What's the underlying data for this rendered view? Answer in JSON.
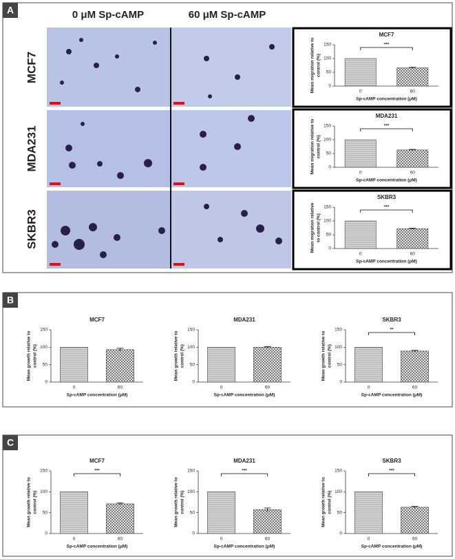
{
  "figure": {
    "panels": [
      "A",
      "B",
      "C"
    ],
    "columns": [
      "0 μM Sp-cAMP",
      "60 μM Sp-cAMP"
    ],
    "rows": [
      "MCF7",
      "MDA231",
      "SKBR3"
    ]
  },
  "chart_data": [
    {
      "type": "bar",
      "title": "MCF7",
      "categories": [
        "0",
        "60"
      ],
      "values": [
        100,
        66
      ],
      "errors": [
        0,
        2
      ],
      "ylabel": [
        "Mean migration relative to",
        "control (%)"
      ],
      "xlabel": "Sp-cAMP concentration (μM)",
      "ylim": [
        0,
        150
      ],
      "yticks": [
        0,
        50,
        100,
        150
      ],
      "annotation": "***"
    },
    {
      "type": "bar",
      "title": "MDA231",
      "categories": [
        "0",
        "60"
      ],
      "values": [
        100,
        63
      ],
      "errors": [
        0,
        2
      ],
      "ylabel": [
        "Mean migration relative to",
        "control (%)"
      ],
      "xlabel": "Sp-cAMP concentration (μM)",
      "ylim": [
        0,
        150
      ],
      "yticks": [
        0,
        50,
        100,
        150
      ],
      "annotation": "***"
    },
    {
      "type": "bar",
      "title": "SKBR3",
      "categories": [
        "0",
        "60"
      ],
      "values": [
        100,
        72
      ],
      "errors": [
        0,
        2
      ],
      "ylabel": [
        "Mean migration relative",
        "to control (%)"
      ],
      "xlabel": "Sp-cAMP concentration (μM)",
      "ylim": [
        0,
        150
      ],
      "yticks": [
        0,
        50,
        100,
        150
      ],
      "annotation": "***"
    },
    {
      "type": "bar",
      "title": "MCF7",
      "categories": [
        "0",
        "60"
      ],
      "values": [
        100,
        93
      ],
      "errors": [
        0,
        4
      ],
      "ylabel": [
        "Mean growth relative to",
        "control (%)"
      ],
      "xlabel": "Sp-cAMP concentration (μM)",
      "ylim": [
        0,
        150
      ],
      "yticks": [
        0,
        50,
        100,
        150
      ]
    },
    {
      "type": "bar",
      "title": "MDA231",
      "categories": [
        "0",
        "60"
      ],
      "values": [
        100,
        100
      ],
      "errors": [
        0,
        2
      ],
      "ylabel": [
        "Mean growth relative to",
        "control (%)"
      ],
      "xlabel": "Sp-cAMP concentration (μM)",
      "ylim": [
        0,
        150
      ],
      "yticks": [
        0,
        50,
        100,
        150
      ]
    },
    {
      "type": "bar",
      "title": "SKBR3",
      "categories": [
        "0",
        "60"
      ],
      "values": [
        100,
        89
      ],
      "errors": [
        0,
        2
      ],
      "ylabel": [
        "Mean growth relative to",
        "control (%)"
      ],
      "xlabel": "Sp-cAMP concentration (μM)",
      "ylim": [
        0,
        150
      ],
      "yticks": [
        0,
        50,
        100,
        150
      ],
      "annotation": "**"
    },
    {
      "type": "bar",
      "title": "MCF7",
      "categories": [
        "0",
        "60"
      ],
      "values": [
        100,
        71
      ],
      "errors": [
        0,
        2
      ],
      "ylabel": [
        "Mean growth relative to",
        "control (%)"
      ],
      "xlabel": "Sp-cAMP concentration (μM)",
      "ylim": [
        0,
        150
      ],
      "yticks": [
        0,
        50,
        100,
        150
      ],
      "annotation": "***"
    },
    {
      "type": "bar",
      "title": "MDA231",
      "categories": [
        "0",
        "60"
      ],
      "values": [
        100,
        57
      ],
      "errors": [
        0,
        4
      ],
      "ylabel": [
        "Mean growth relative to",
        "control (%)"
      ],
      "xlabel": "Sp-cAMP concentration (μM)",
      "ylim": [
        0,
        150
      ],
      "yticks": [
        0,
        50,
        100,
        150
      ],
      "annotation": "***"
    },
    {
      "type": "bar",
      "title": "SKBR3",
      "categories": [
        "0",
        "60"
      ],
      "values": [
        100,
        63
      ],
      "errors": [
        0,
        2
      ],
      "ylabel": [
        "Mean growth relative to",
        "control (%)"
      ],
      "xlabel": "Sp-cAMP concentration (μM)",
      "ylim": [
        0,
        150
      ],
      "yticks": [
        0,
        50,
        100,
        150
      ],
      "annotation": "***"
    }
  ]
}
